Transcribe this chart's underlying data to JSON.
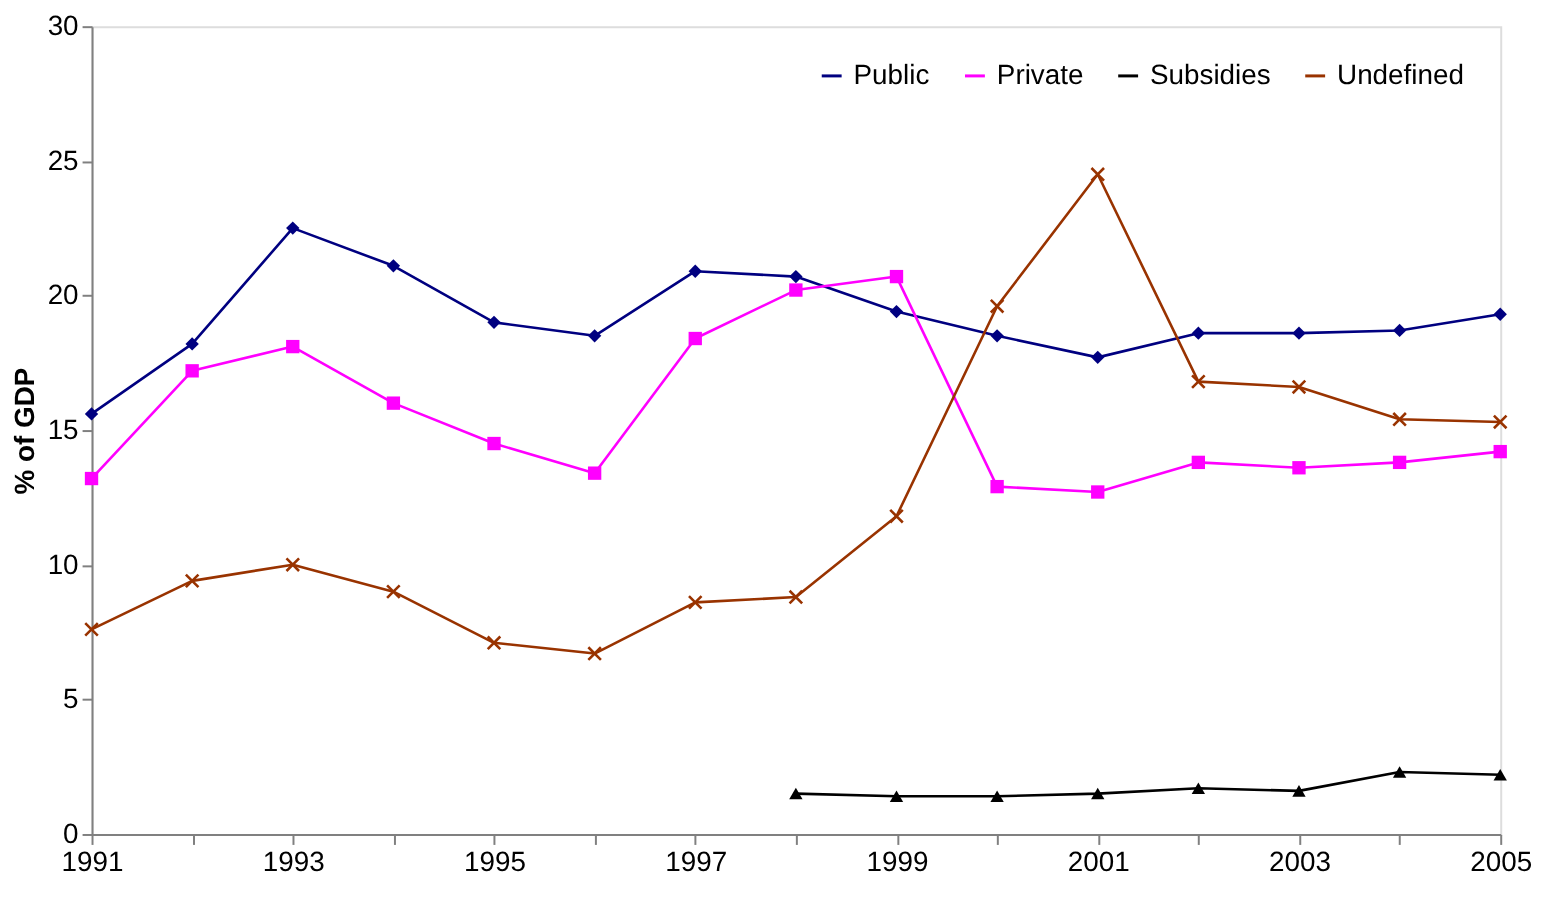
{
  "chart_data": {
    "type": "line",
    "ylabel": "% of GDP",
    "x": [
      1991,
      1992,
      1993,
      1994,
      1995,
      1996,
      1997,
      1998,
      1999,
      2000,
      2001,
      2002,
      2003,
      2004,
      2005
    ],
    "series": [
      {
        "name": "Public",
        "color": "#000080",
        "marker": "diamond",
        "values": [
          15.6,
          18.2,
          22.5,
          21.1,
          19.0,
          18.5,
          20.9,
          20.7,
          19.4,
          18.5,
          17.7,
          18.6,
          18.6,
          18.7,
          19.3
        ]
      },
      {
        "name": "Private",
        "color": "#ff00ff",
        "marker": "square",
        "values": [
          13.2,
          17.2,
          18.1,
          16.0,
          14.5,
          13.4,
          18.4,
          20.2,
          20.7,
          12.9,
          12.7,
          13.8,
          13.6,
          13.8,
          14.2
        ]
      },
      {
        "name": "Subsidies",
        "color": "#000000",
        "marker": "triangle",
        "values": [
          null,
          null,
          null,
          null,
          null,
          null,
          null,
          1.5,
          1.4,
          1.4,
          1.5,
          1.7,
          1.6,
          2.3,
          2.2
        ]
      },
      {
        "name": "Undefined",
        "color": "#993300",
        "marker": "cross",
        "values": [
          7.6,
          9.4,
          10.0,
          9.0,
          7.1,
          6.7,
          8.6,
          8.8,
          11.8,
          19.6,
          24.5,
          16.8,
          16.6,
          15.4,
          15.3
        ]
      }
    ],
    "xlim": [
      1991,
      2005
    ],
    "xticks": [
      1991,
      {
        "value": 1992,
        "label": null
      },
      1993,
      {
        "value": 1994,
        "label": null
      },
      1995,
      {
        "value": 1996,
        "label": null
      },
      1997,
      {
        "value": 1998,
        "label": null
      },
      1999,
      {
        "value": 2000,
        "label": null
      },
      2001,
      {
        "value": 2002,
        "label": null
      },
      2003,
      {
        "value": 2004,
        "label": null
      },
      2005
    ],
    "ylim": [
      0,
      30
    ],
    "yticks": [
      0,
      5,
      10,
      15,
      20,
      25,
      30
    ],
    "grid": false,
    "legend": "top right",
    "line_style": "solid"
  }
}
